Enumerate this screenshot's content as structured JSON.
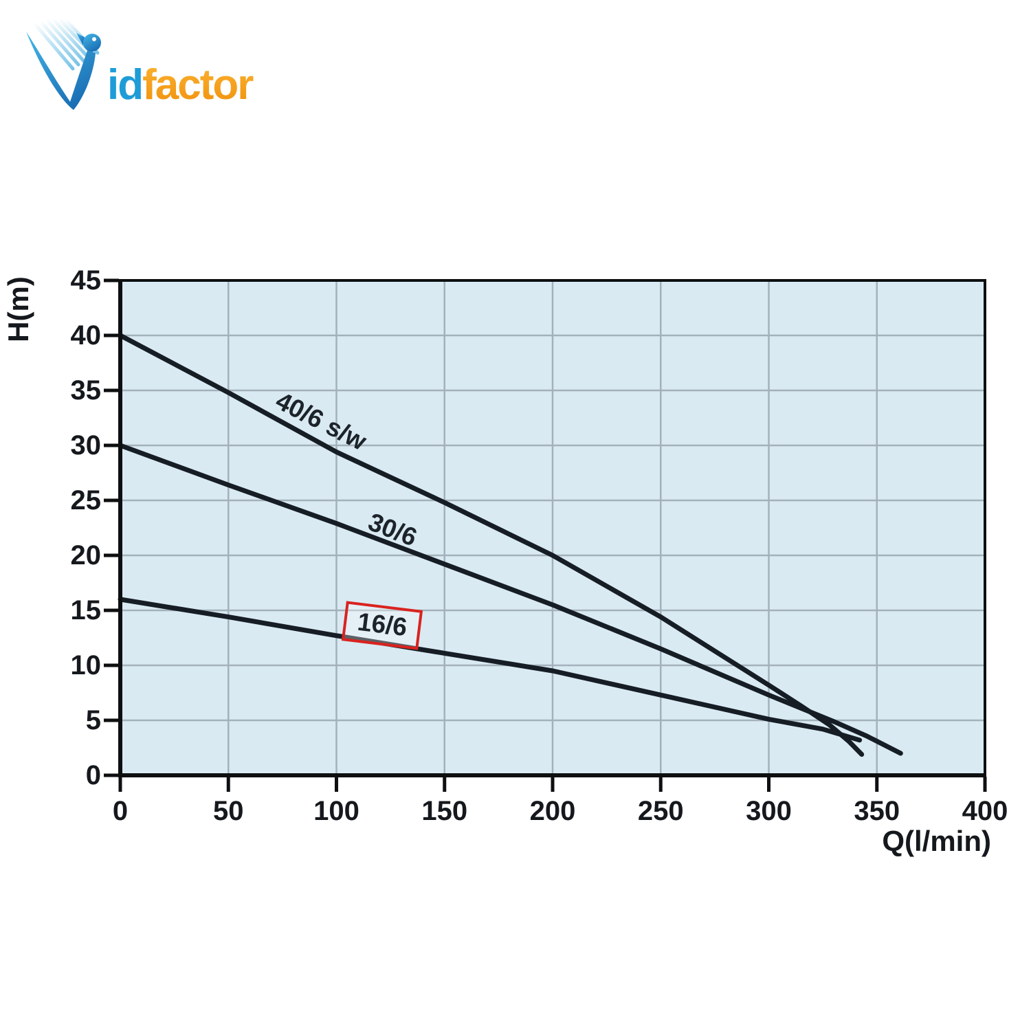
{
  "logo": {
    "id_text": "id",
    "factor_text": "factor",
    "colors": {
      "blue": "#1e9cd7",
      "blue_light": "#8ccdec",
      "blue_dark": "#1a6fb5",
      "orange": "#f7a11c",
      "orange_dark": "#f08f0e"
    }
  },
  "chart_data": {
    "type": "line",
    "title": "",
    "xlabel": "Q(l/min)",
    "ylabel": "H(m)",
    "xlim": [
      0,
      400
    ],
    "ylim": [
      0,
      45
    ],
    "xticks": [
      0,
      50,
      100,
      150,
      200,
      250,
      300,
      350,
      400
    ],
    "yticks": [
      0,
      5,
      10,
      15,
      20,
      25,
      30,
      35,
      40,
      45
    ],
    "grid": true,
    "legend_position": "inline-labels",
    "plot_background": "#d9eaf3",
    "gridline_color": "#a3b1bb",
    "axis_color": "#0d0f11",
    "curve_color": "#161d24",
    "label_box_color": "#d9231f",
    "series": [
      {
        "name": "40/6 s/w",
        "points": [
          [
            0,
            40
          ],
          [
            50,
            34.8
          ],
          [
            100,
            29.4
          ],
          [
            150,
            24.8
          ],
          [
            200,
            20.0
          ],
          [
            250,
            14.4
          ],
          [
            300,
            8.2
          ],
          [
            315,
            6.3
          ],
          [
            328,
            4.6
          ],
          [
            337,
            3.1
          ],
          [
            343,
            1.9
          ]
        ],
        "label": {
          "text": "40/6 s/w",
          "x": 93,
          "y": 32.2,
          "angle": 27,
          "boxed": false
        }
      },
      {
        "name": "30/6",
        "points": [
          [
            0,
            30
          ],
          [
            50,
            26.4
          ],
          [
            100,
            22.9
          ],
          [
            150,
            19.2
          ],
          [
            200,
            15.5
          ],
          [
            250,
            11.5
          ],
          [
            300,
            7.3
          ],
          [
            330,
            4.9
          ],
          [
            345,
            3.6
          ],
          [
            361,
            2.0
          ]
        ],
        "label": {
          "text": "30/6",
          "x": 126,
          "y": 22.3,
          "angle": 21,
          "boxed": false
        }
      },
      {
        "name": "16/6",
        "points": [
          [
            0,
            16
          ],
          [
            50,
            14.4
          ],
          [
            100,
            12.7
          ],
          [
            150,
            11.1
          ],
          [
            200,
            9.5
          ],
          [
            250,
            7.3
          ],
          [
            300,
            5.1
          ],
          [
            325,
            4.2
          ],
          [
            342,
            3.2
          ]
        ],
        "label": {
          "text": "16/6",
          "x": 121,
          "y": 13.6,
          "angle": 7,
          "boxed": true
        }
      }
    ]
  }
}
